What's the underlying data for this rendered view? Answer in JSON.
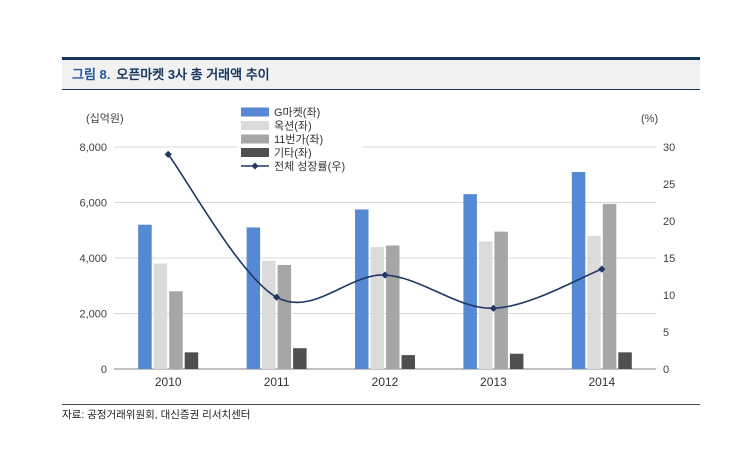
{
  "figure": {
    "label": "그림 8.",
    "title": "오픈마켓 3사 총 거래액 추이",
    "source": "자료: 공정거래위원회, 대신증권 리서치센터"
  },
  "chart_data": {
    "type": "bar",
    "subtype": "grouped-bars-with-line",
    "title": "오픈마켓 3사 총 거래액 추이",
    "categories": [
      "2010",
      "2011",
      "2012",
      "2013",
      "2014"
    ],
    "series": [
      {
        "name": "G마켓(좌)",
        "kind": "bar",
        "axis": "left",
        "color": "#5589D3",
        "values": [
          5200,
          5100,
          5750,
          6300,
          7100
        ]
      },
      {
        "name": "옥션(좌)",
        "kind": "bar",
        "axis": "left",
        "color": "#DBDBDB",
        "values": [
          3800,
          3900,
          4400,
          4600,
          4800
        ]
      },
      {
        "name": "11번가(좌)",
        "kind": "bar",
        "axis": "left",
        "color": "#A6A6A6",
        "values": [
          2800,
          3750,
          4450,
          4950,
          5950
        ]
      },
      {
        "name": "기타(좌)",
        "kind": "bar",
        "axis": "left",
        "color": "#4F4F4F",
        "values": [
          600,
          750,
          500,
          550,
          600
        ]
      },
      {
        "name": "전체 성장률(우)",
        "kind": "line",
        "axis": "right",
        "color": "#1F3864",
        "values": [
          29,
          9.7,
          12.7,
          8.2,
          13.5
        ]
      }
    ],
    "left_axis": {
      "label": "(십억원)",
      "min": 0,
      "max": 8000,
      "step": 2000,
      "ticks": [
        "0",
        "2,000",
        "4,000",
        "6,000",
        "8,000"
      ]
    },
    "right_axis": {
      "label": "(%)",
      "min": 0,
      "max": 30,
      "step": 5,
      "ticks": [
        "0",
        "5",
        "10",
        "15",
        "20",
        "25",
        "30"
      ]
    },
    "grid": true,
    "legend_position": "top-left-inside"
  }
}
